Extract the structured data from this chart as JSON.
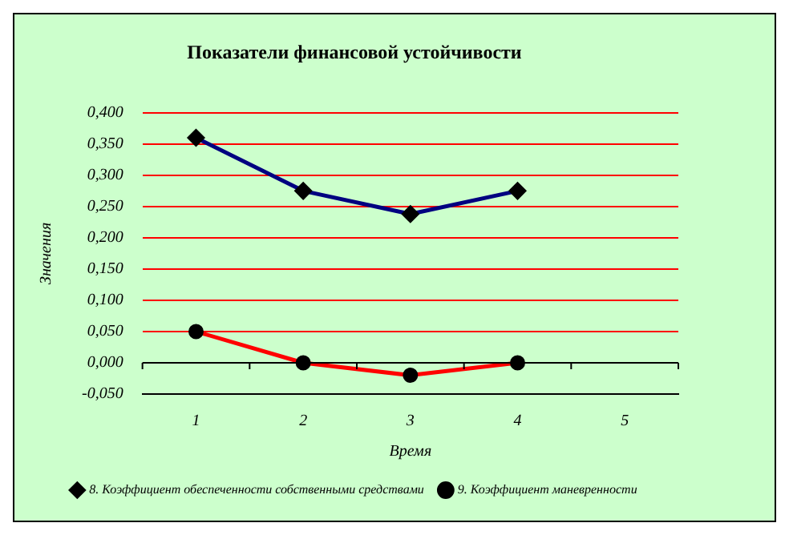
{
  "chart_data": {
    "type": "line",
    "title": "Показатели финансовой устойчивости",
    "xlabel": "Время",
    "ylabel": "Значения",
    "categories": [
      "1",
      "2",
      "3",
      "4",
      "5"
    ],
    "series": [
      {
        "name": "8. Коэффициент обеспеченности собственными средствами",
        "color": "#000080",
        "marker": "diamond",
        "values": [
          0.36,
          0.275,
          0.238,
          0.275,
          null
        ]
      },
      {
        "name": "9. Коэффициент маневренности",
        "color": "#ff0000",
        "marker": "circle",
        "values": [
          0.05,
          0.0,
          -0.02,
          0.0,
          null
        ]
      }
    ],
    "ylim": [
      -0.05,
      0.4
    ],
    "yticks": [
      {
        "value": -0.05,
        "label": "-0,050"
      },
      {
        "value": 0,
        "label": "0,000"
      },
      {
        "value": 0.05,
        "label": "0,050"
      },
      {
        "value": 0.1,
        "label": "0,100"
      },
      {
        "value": 0.15,
        "label": "0,150"
      },
      {
        "value": 0.2,
        "label": "0,200"
      },
      {
        "value": 0.25,
        "label": "0,250"
      },
      {
        "value": 0.3,
        "label": "0,300"
      },
      {
        "value": 0.35,
        "label": "0,350"
      },
      {
        "value": 0.4,
        "label": "0,400"
      }
    ],
    "grid": "y",
    "legend": "bottom",
    "line_style": "solid"
  }
}
